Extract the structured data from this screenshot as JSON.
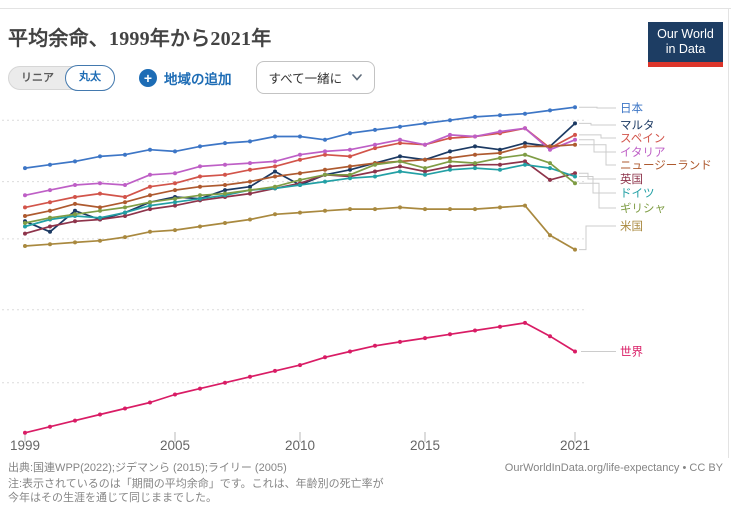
{
  "header": {
    "title": "平均余命、1999年から2021年",
    "logo": {
      "line1": "Our World",
      "line2": "in Data"
    }
  },
  "controls": {
    "scale_toggle": {
      "options": [
        "リニア",
        "丸太"
      ],
      "selected": "丸太"
    },
    "add_region_label": "地域の追加",
    "plus_glyph": "+",
    "entity_dropdown_value": "すべて一緒に"
  },
  "chart_data": {
    "type": "line",
    "title": "平均余命、1999年から2021年",
    "xlabel": "",
    "ylabel": "",
    "y_scale": "log",
    "ylim": [
      66.4,
      85.5
    ],
    "grid": "dashed-horizontal",
    "legend_position": "right-of-lines",
    "x": [
      1999,
      2000,
      2001,
      2002,
      2003,
      2004,
      2005,
      2006,
      2007,
      2008,
      2009,
      2010,
      2011,
      2012,
      2013,
      2014,
      2015,
      2016,
      2017,
      2018,
      2019,
      2020,
      2021
    ],
    "x_ticks": [
      1999,
      2005,
      2010,
      2015,
      2021
    ],
    "gridlines": [
      84,
      80.3,
      77,
      73.1,
      69.3
    ],
    "series": [
      {
        "id": "japan",
        "name": "日本",
        "color": "#3D76C6",
        "label_slot": 20,
        "elbow": 597,
        "values": [
          81.1,
          81.3,
          81.5,
          81.8,
          81.9,
          82.2,
          82.1,
          82.4,
          82.6,
          82.7,
          83.0,
          83.0,
          82.8,
          83.2,
          83.4,
          83.6,
          83.8,
          84.0,
          84.2,
          84.3,
          84.4,
          84.6,
          84.8
        ]
      },
      {
        "id": "malta",
        "name": "マルタ",
        "color": "#1C3A63",
        "label_slot": 37,
        "elbow": 591,
        "values": [
          78.0,
          77.4,
          78.6,
          78.1,
          78.5,
          79.1,
          79.4,
          79.3,
          79.8,
          80.0,
          80.9,
          80.1,
          80.7,
          81.0,
          81.4,
          81.8,
          81.6,
          82.1,
          82.4,
          82.2,
          82.6,
          82.4,
          83.8
        ]
      },
      {
        "id": "spain",
        "name": "スペイン",
        "color": "#D2544A",
        "label_slot": 50,
        "elbow": 601,
        "values": [
          78.8,
          79.1,
          79.4,
          79.6,
          79.4,
          80.0,
          80.2,
          80.6,
          80.7,
          81.0,
          81.2,
          81.6,
          81.9,
          81.8,
          82.3,
          82.6,
          82.5,
          82.9,
          83.0,
          83.2,
          83.5,
          82.3,
          83.1
        ]
      },
      {
        "id": "italy",
        "name": "イタリア",
        "color": "#BE5FC6",
        "label_slot": 64,
        "elbow": 594,
        "values": [
          79.5,
          79.8,
          80.1,
          80.2,
          80.1,
          80.7,
          80.8,
          81.2,
          81.3,
          81.4,
          81.5,
          81.9,
          82.1,
          82.2,
          82.5,
          82.8,
          82.5,
          83.1,
          83.0,
          83.3,
          83.5,
          82.2,
          82.8
        ]
      },
      {
        "id": "new-zealand",
        "name": "ニュージーランド",
        "color": "#AE5A2F",
        "label_slot": 77,
        "elbow": 606,
        "values": [
          78.3,
          78.6,
          79.0,
          78.8,
          79.1,
          79.5,
          79.8,
          80.0,
          80.1,
          80.3,
          80.6,
          80.8,
          81.0,
          81.2,
          81.4,
          81.5,
          81.6,
          81.7,
          81.9,
          82.0,
          82.4,
          82.4,
          82.5
        ]
      },
      {
        "id": "uk",
        "name": "英国",
        "color": "#8E344B",
        "label_slot": 91,
        "elbow": 588,
        "values": [
          77.3,
          77.7,
          78.0,
          78.1,
          78.3,
          78.7,
          78.9,
          79.2,
          79.4,
          79.6,
          79.9,
          80.2,
          80.7,
          80.6,
          80.9,
          81.2,
          80.9,
          81.2,
          81.3,
          81.3,
          81.5,
          80.4,
          80.8
        ]
      },
      {
        "id": "germany",
        "name": "ドイツ",
        "color": "#23A0A5",
        "label_slot": 105,
        "elbow": 593,
        "values": [
          77.7,
          78.1,
          78.3,
          78.2,
          78.5,
          78.9,
          79.1,
          79.3,
          79.5,
          79.8,
          79.9,
          80.1,
          80.3,
          80.5,
          80.6,
          80.9,
          80.7,
          81.0,
          81.1,
          81.0,
          81.3,
          81.1,
          80.6
        ]
      },
      {
        "id": "greece",
        "name": "ギリシャ",
        "color": "#7F9D45",
        "label_slot": 120,
        "elbow": 599,
        "values": [
          77.9,
          78.2,
          78.4,
          78.6,
          78.8,
          79.1,
          79.3,
          79.5,
          79.6,
          79.8,
          80.0,
          80.4,
          80.7,
          80.7,
          81.3,
          81.5,
          81.1,
          81.5,
          81.4,
          81.7,
          81.9,
          81.4,
          80.2
        ]
      },
      {
        "id": "usa",
        "name": "米国",
        "color": "#A9893F",
        "label_slot": 138,
        "elbow": 586,
        "values": [
          76.6,
          76.7,
          76.8,
          76.9,
          77.1,
          77.4,
          77.5,
          77.7,
          77.9,
          78.1,
          78.4,
          78.5,
          78.6,
          78.7,
          78.7,
          78.8,
          78.7,
          78.7,
          78.7,
          78.8,
          78.9,
          77.2,
          76.4
        ]
      },
      {
        "id": "world",
        "name": "世界",
        "color": "#D91C65",
        "label_slot": null,
        "elbow": null,
        "values": [
          66.8,
          67.1,
          67.4,
          67.7,
          68.0,
          68.3,
          68.7,
          69.0,
          69.3,
          69.6,
          69.9,
          70.2,
          70.6,
          70.9,
          71.2,
          71.4,
          71.6,
          71.8,
          72.0,
          72.2,
          72.4,
          71.7,
          70.9
        ]
      }
    ]
  },
  "footer": {
    "source": "出典:国連WPP(2022);ジデマンら (2015);ライリー (2005)",
    "link": "OurWorldInData.org/life-expectancy • CC BY",
    "note_line1": "注:表示されているのは「期間の平均余命」です。これは、年齢別の死亡率が",
    "note_line2": "今年はその生涯を通じて同じままでした。"
  }
}
